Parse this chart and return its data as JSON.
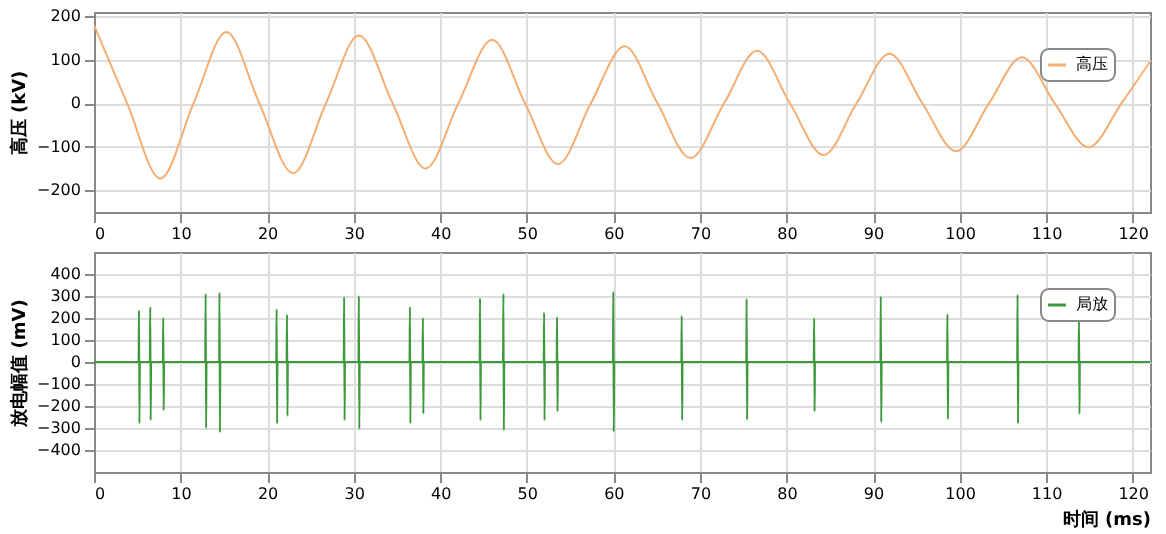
{
  "chart_data": [
    {
      "type": "line",
      "ylabel": "高压 (kV)",
      "xlim": [
        0,
        122
      ],
      "xticks": [
        0,
        10,
        20,
        30,
        40,
        50,
        60,
        70,
        80,
        90,
        100,
        110,
        120
      ],
      "ylim": [
        -250,
        210
      ],
      "yticks": [
        -200,
        -100,
        0,
        100,
        200
      ],
      "grid": true,
      "legend": "top right",
      "marker": "none",
      "line_style": "solid",
      "series": [
        {
          "name": "高压",
          "color": "#f5ae72",
          "x": [
            0,
            3.83,
            7.66,
            11.5,
            15.3,
            19.1,
            23.0,
            26.8,
            30.6,
            34.5,
            38.3,
            42.1,
            46.0,
            49.8,
            53.6,
            57.4,
            61.3,
            65.1,
            68.9,
            72.8,
            76.6,
            80.4,
            84.3,
            88.1,
            91.9,
            95.7,
            99.6,
            103.4,
            107.2,
            111.0,
            114.9,
            118.7,
            122
          ],
          "values": [
            180,
            0,
            -173,
            0,
            164,
            0,
            -161,
            0,
            156,
            0,
            -150,
            0,
            146,
            0,
            -140,
            0,
            131,
            0,
            -126,
            0,
            121,
            0,
            -119,
            0,
            114,
            0,
            -110,
            0,
            106,
            0,
            -101,
            0,
            96
          ]
        }
      ]
    },
    {
      "type": "line",
      "ylabel": "放电幅值 (mV)",
      "xlabel": "时间 (ms)",
      "xlim": [
        0,
        122
      ],
      "xticks": [
        0,
        10,
        20,
        30,
        40,
        50,
        60,
        70,
        80,
        90,
        100,
        110,
        120
      ],
      "ylim": [
        -500,
        500
      ],
      "yticks": [
        -400,
        -300,
        -200,
        -100,
        0,
        100,
        200,
        300,
        400
      ],
      "grid": true,
      "legend": "top right",
      "marker": "none",
      "line_style": "solid",
      "series": [
        {
          "name": "局放",
          "color": "#3c9a3c",
          "x": [
            0,
            5.15,
            5.2,
            5.25,
            5.3,
            6.45,
            6.5,
            6.55,
            6.6,
            7.95,
            8.0,
            8.05,
            8.1,
            12.85,
            12.9,
            12.95,
            13.0,
            14.45,
            14.5,
            14.55,
            14.6,
            21.05,
            21.1,
            21.15,
            21.2,
            22.25,
            22.3,
            22.35,
            22.4,
            28.85,
            28.9,
            28.95,
            29.0,
            30.55,
            30.6,
            30.65,
            30.7,
            36.45,
            36.5,
            36.55,
            36.6,
            37.95,
            38.0,
            38.05,
            38.1,
            44.55,
            44.6,
            44.65,
            44.7,
            47.25,
            47.3,
            47.35,
            47.4,
            51.95,
            52.0,
            52.05,
            52.1,
            53.45,
            53.5,
            53.55,
            53.6,
            59.95,
            60.0,
            60.05,
            60.1,
            67.85,
            67.9,
            67.95,
            68.0,
            75.35,
            75.4,
            75.45,
            75.5,
            83.15,
            83.2,
            83.25,
            83.3,
            90.85,
            90.9,
            90.95,
            91.0,
            98.55,
            98.6,
            98.65,
            98.7,
            106.65,
            106.7,
            106.75,
            106.8,
            113.75,
            113.8,
            113.85,
            113.9,
            122
          ],
          "values": [
            0,
            0,
            235,
            -280,
            0,
            0,
            250,
            -265,
            0,
            0,
            200,
            -220,
            0,
            0,
            310,
            -300,
            0,
            0,
            315,
            -320,
            0,
            0,
            240,
            -280,
            0,
            0,
            215,
            -245,
            0,
            0,
            295,
            -265,
            0,
            0,
            300,
            -305,
            0,
            0,
            250,
            -280,
            0,
            0,
            200,
            -235,
            0,
            0,
            290,
            -265,
            0,
            0,
            310,
            -310,
            0,
            0,
            225,
            -265,
            0,
            0,
            205,
            -225,
            0,
            0,
            320,
            -317,
            0,
            0,
            210,
            -265,
            0,
            0,
            287,
            -263,
            0,
            0,
            199,
            -225,
            0,
            0,
            298,
            -274,
            0,
            0,
            217,
            -260,
            0,
            0,
            306,
            -279,
            0,
            0,
            199,
            -236,
            0,
            0
          ]
        }
      ]
    }
  ]
}
